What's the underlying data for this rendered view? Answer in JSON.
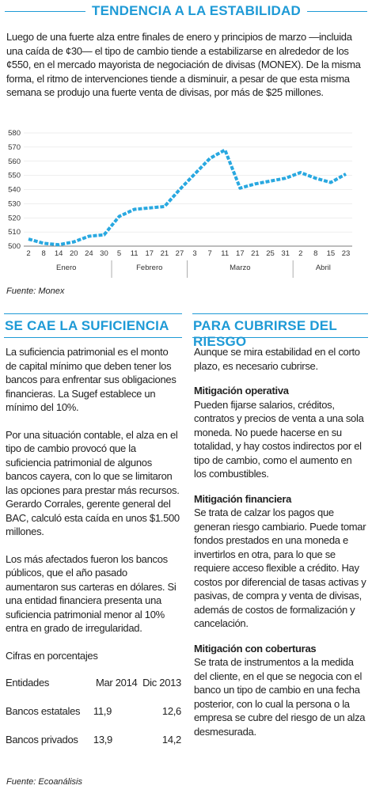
{
  "header": {
    "title": "TENDENCIA A LA ESTABILIDAD",
    "text": "Luego de una fuerte alza entre finales de enero y principios de marzo —incluida una caída de ¢30— el tipo de cambio tiende a estabilizarse en alrededor de los ¢550, en el mercado mayorista de negociación de divisas (MONEX). De la misma forma, el ritmo de intervenciones tiende a disminuir, a pesar de que esta misma semana se produjo una fuerte venta de divisas, por más de $25 millones."
  },
  "chart_data": {
    "type": "line",
    "groups": [
      {
        "name": "Enero",
        "categories": [
          "2",
          "8",
          "14",
          "20",
          "24",
          "30"
        ]
      },
      {
        "name": "Febrero",
        "categories": [
          "5",
          "11",
          "17",
          "21",
          "27"
        ]
      },
      {
        "name": "Marzo",
        "categories": [
          "3",
          "7",
          "11",
          "17",
          "21",
          "25",
          "31"
        ]
      },
      {
        "name": "Abril",
        "categories": [
          "2",
          "8",
          "15",
          "23"
        ]
      }
    ],
    "series": [
      {
        "color": "#29a8e0",
        "values": [
          505,
          502,
          501,
          503,
          507,
          508,
          521,
          526,
          527,
          528,
          540,
          551,
          562,
          568,
          541,
          544,
          546,
          548,
          552,
          548,
          545,
          551
        ]
      }
    ],
    "ylim": [
      500,
      580
    ],
    "yticks": [
      500,
      510,
      520,
      530,
      540,
      550,
      560,
      570,
      580
    ],
    "source": "Fuente: Monex"
  },
  "left": {
    "title": "SE CAE LA SUFICIENCIA",
    "paragraphs": [
      "La suficiencia patrimonial es el monto de capital mínimo que deben tener los bancos para enfrentar sus obligaciones financieras. La Sugef establece un mínimo del 10%.",
      "Por una situación contable, el alza en el tipo de cambio provocó que la suficiencia patrimonial de algunos bancos cayera, con lo que se limitaron las opciones para prestar más recursos. Gerardo Corrales, gerente general del BAC, calculó esta caída en unos $1.500 millones.",
      "Los más afectados fueron los bancos públicos, que el año pasado aumentaron sus carteras en dólares. Si una entidad financiera presenta una suficiencia patrimonial menor al 10% entra en grado de irregularidad."
    ],
    "table": {
      "caption": "Cifras en porcentajes",
      "header": [
        "Entidades",
        "Mar 2014",
        "Dic 2013"
      ],
      "rows": [
        [
          "Bancos estatales",
          "11,9",
          "12,6"
        ],
        [
          "Bancos privados",
          "13,9",
          "14,2"
        ]
      ]
    },
    "source": "Fuente: Ecoanálisis"
  },
  "right": {
    "title": "PARA CUBRIRSE DEL RIESGO",
    "intro": "Aunque se mira estabilidad en el corto plazo, es necesario cubrirse.",
    "sections": [
      {
        "heading": "Mitigación operativa",
        "text": "Pueden fijarse salarios, créditos, contratos y precios de venta a una sola moneda. No puede hacerse en su totalidad, y hay costos indirectos por el tipo de cambio, como el aumento en los combustibles."
      },
      {
        "heading": "Mitigación financiera",
        "text": "Se trata de calzar los pagos que generan riesgo cambiario. Puede tomar fondos prestados en una moneda e invertirlos en otra, para lo que se requiere acceso flexible a crédito. Hay costos por diferencial de tasas activas y pasivas, de compra y venta de divisas, además de costos de formalización y cancelación."
      },
      {
        "heading": "Mitigación con coberturas",
        "text": "Se trata de instrumentos a la medida del cliente, en el que se negocia con el banco un tipo de cambio en una fecha posterior, con lo cual la persona o la empresa se cubre del riesgo de un alza desmesurada."
      }
    ]
  }
}
